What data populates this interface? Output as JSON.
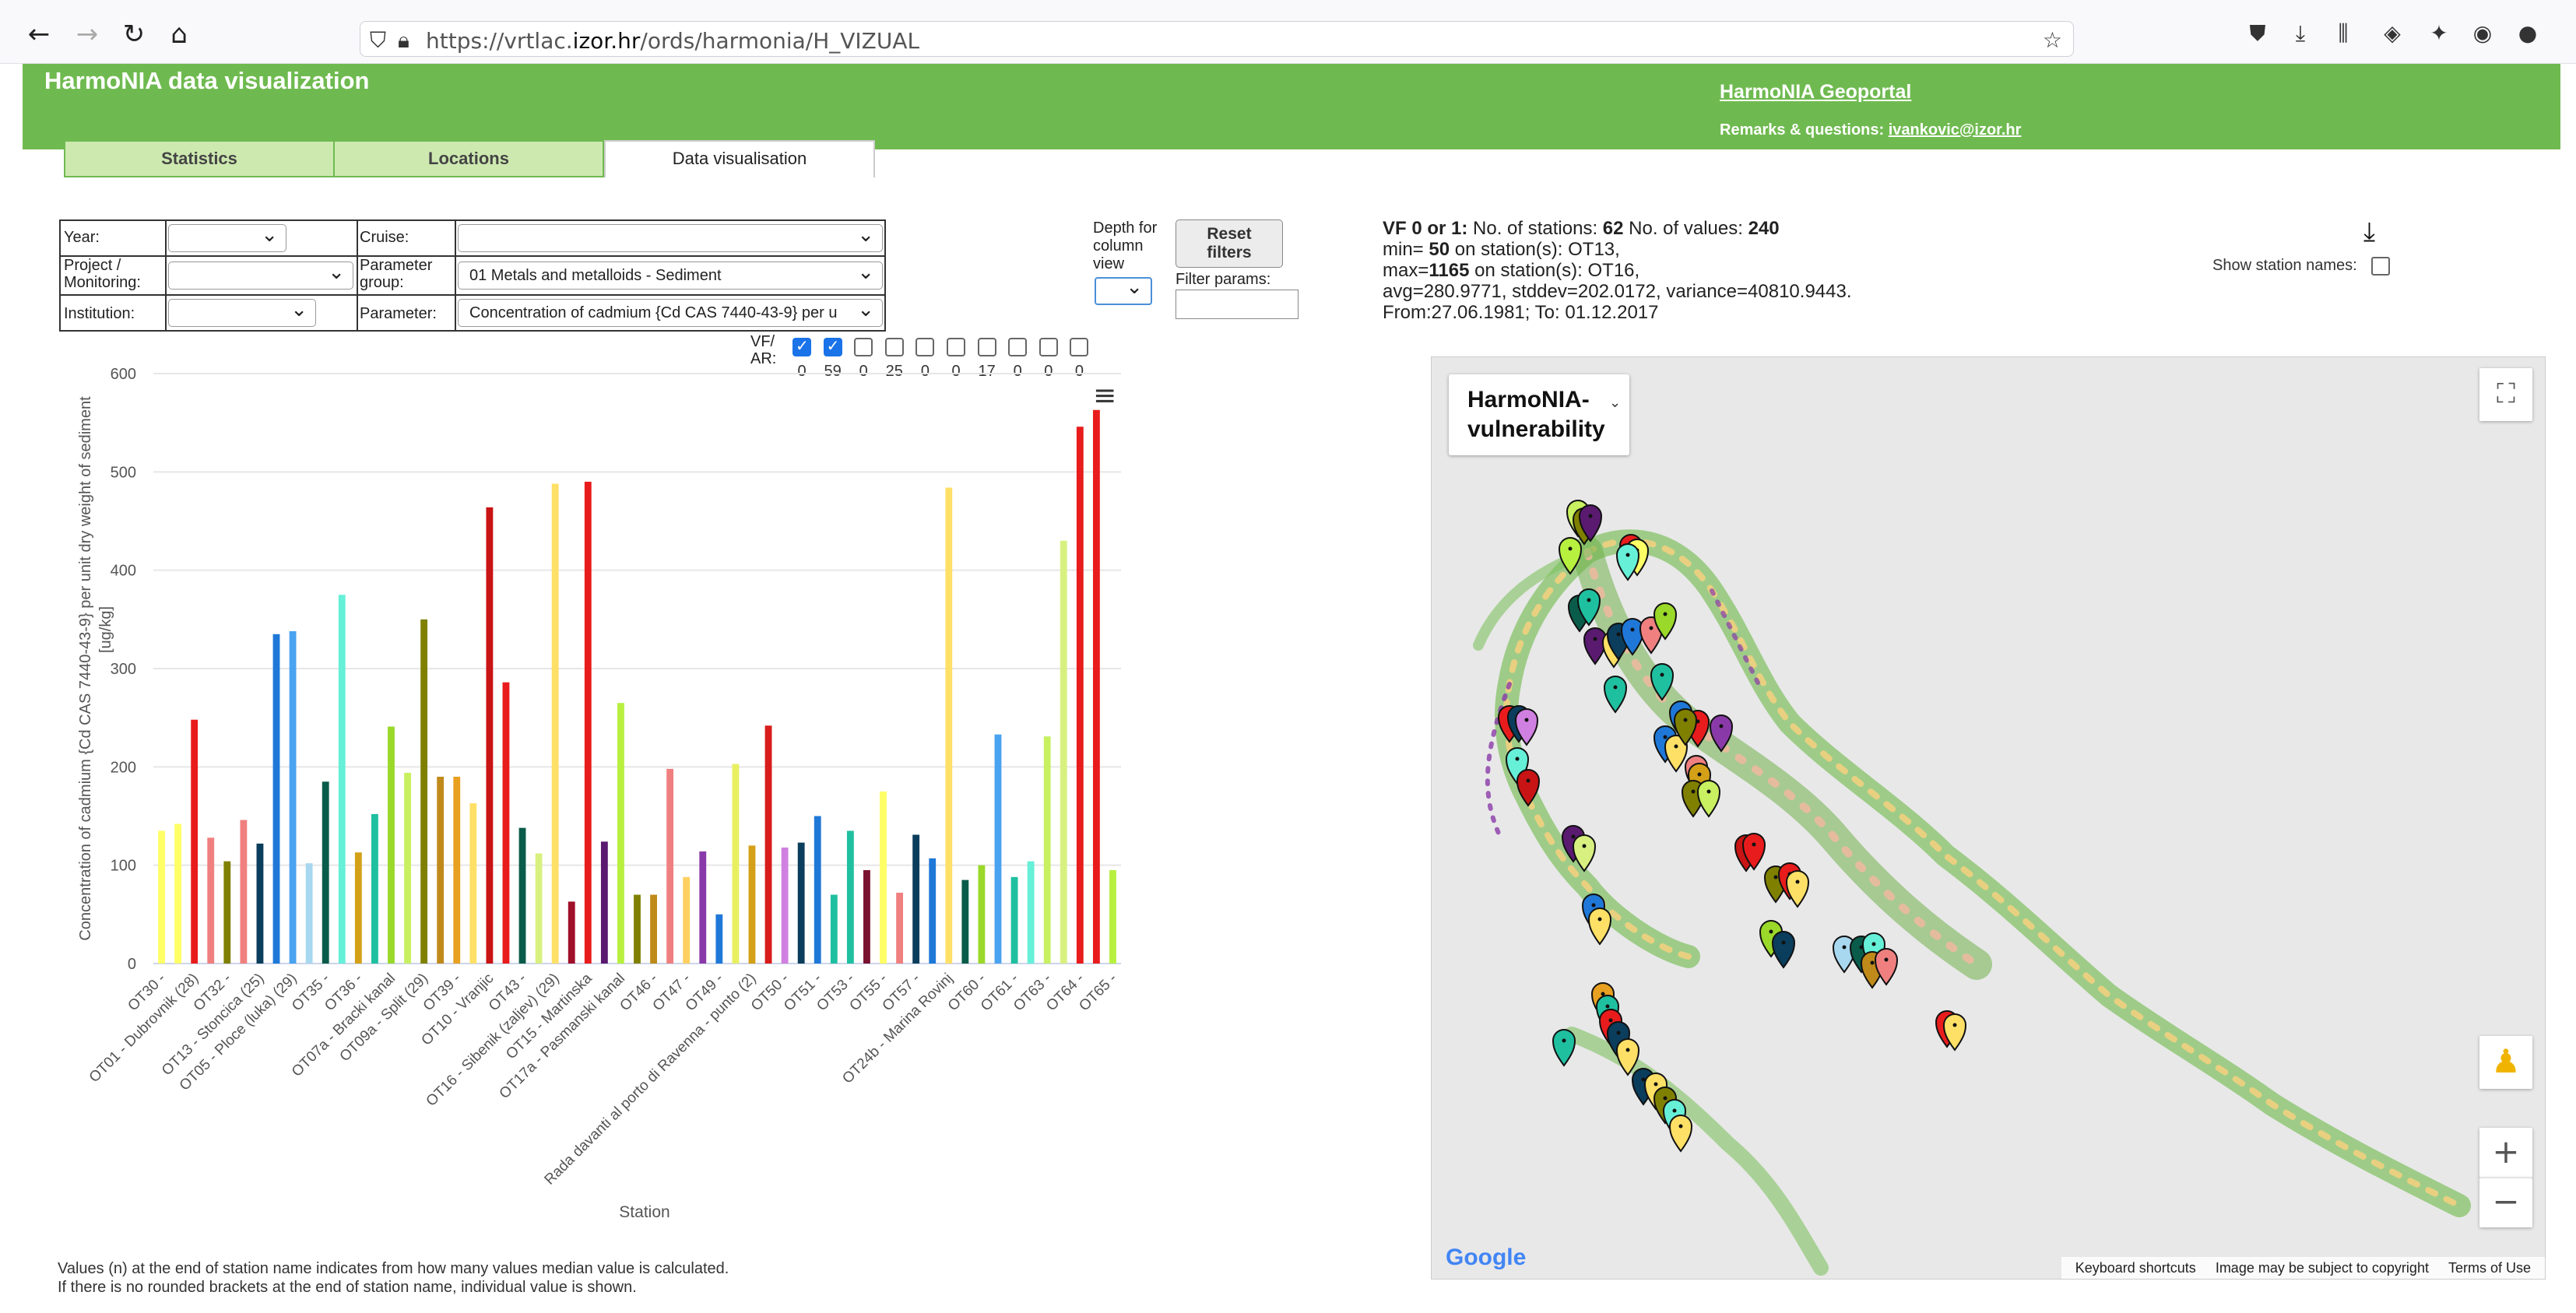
{
  "browser": {
    "url_prefix": "https://vrtlac.",
    "url_domain": "izor.hr",
    "url_path": "/ords/harmonia/H_VIZUAL"
  },
  "header": {
    "title": "HarmoNIA data visualization",
    "geoportal_link": "HarmoNIA Geoportal",
    "remarks_label": "Remarks & questions:",
    "remarks_email": "ivankovic@izor.hr"
  },
  "tabs": [
    {
      "label": "Statistics"
    },
    {
      "label": "Locations"
    },
    {
      "label": "Data visualisation"
    }
  ],
  "filters": {
    "year_label": "Year:",
    "year_value": "",
    "cruise_label": "Cruise:",
    "cruise_value": "",
    "project_label_1": "Project /",
    "project_label_2": "Monitoring:",
    "project_value": "",
    "param_group_label_1": "Parameter",
    "param_group_label_2": "group:",
    "param_group_value": "01 Metals and metalloids - Sediment",
    "institution_label": "Institution:",
    "institution_value": "",
    "parameter_label": "Parameter:",
    "parameter_value": "Concentration of cadmium {Cd CAS 7440-43-9} per u",
    "depth_label": [
      "Depth for",
      "column",
      "view"
    ],
    "reset_button": [
      "Reset",
      "filters"
    ],
    "filter_params_label": "Filter params:",
    "filter_params_value": ""
  },
  "vfar": {
    "label_1": "VF/",
    "label_2": "AR:",
    "checkboxes": [
      {
        "checked": true,
        "count": "0"
      },
      {
        "checked": true,
        "count": "59"
      },
      {
        "checked": false,
        "count": "0"
      },
      {
        "checked": false,
        "count": "25"
      },
      {
        "checked": false,
        "count": "0"
      },
      {
        "checked": false,
        "count": "0"
      },
      {
        "checked": false,
        "count": "17"
      },
      {
        "checked": false,
        "count": "0"
      },
      {
        "checked": false,
        "count": "0"
      },
      {
        "checked": false,
        "count": "0"
      }
    ]
  },
  "stats": {
    "line1_prefix": "VF 0 or 1:",
    "line1_stations_label": "No. of stations:",
    "stations": "62",
    "line1_values_label": "No. of values:",
    "values": "240",
    "min_label": "min=",
    "min_value": "50",
    "min_station": "on station(s): OT13,",
    "max_label": "max=",
    "max_value": "1165",
    "max_station": "on station(s): OT16,",
    "line4": "avg=280.9771, stddev=202.0172, variance=40810.9443.",
    "line5": "From:27.06.1981; To: 01.12.2017",
    "show_names_label": "Show station names:"
  },
  "map": {
    "layer_name_1": "HarmoNIA-",
    "layer_name_2": "vulnerability",
    "google": "Google",
    "footer": [
      "Keyboard shortcuts",
      "Image may be subject to copyright",
      "Terms of Use"
    ]
  },
  "note": {
    "line1": "Values (n) at the end of station name indicates from how many values median value is calculated.",
    "line2": "If there is no rounded brackets at the end of station name, individual value is shown."
  },
  "chart_data": {
    "type": "bar",
    "ylabel_1": "Concentration of cadmium {Cd CAS 7440-43-9} per unit dry weight of sediment",
    "ylabel_2": "[ug/kg]",
    "xlabel": "Station",
    "ylim": [
      0,
      600
    ],
    "yticks": [
      0,
      100,
      200,
      300,
      400,
      500,
      600
    ],
    "grid": true,
    "bars": [
      {
        "value": 135,
        "color": "#ffff66"
      },
      {
        "value": 142,
        "color": "#ffff66"
      },
      {
        "value": 248,
        "color": "#e81c1c"
      },
      {
        "value": 128,
        "color": "#f08080"
      },
      {
        "value": 104,
        "color": "#808000"
      },
      {
        "value": 146,
        "color": "#f08080"
      },
      {
        "value": 122,
        "color": "#0b3d5c"
      },
      {
        "value": 335,
        "color": "#1f78d8"
      },
      {
        "value": 338,
        "color": "#4aa3f0"
      },
      {
        "value": 102,
        "color": "#a8d8f0"
      },
      {
        "value": 185,
        "color": "#0a5c4a"
      },
      {
        "value": 375,
        "color": "#66f0d8"
      },
      {
        "value": 113,
        "color": "#d4a017"
      },
      {
        "value": 152,
        "color": "#1fc0a0"
      },
      {
        "value": 241,
        "color": "#9ad82a"
      },
      {
        "value": 194,
        "color": "#c8f060"
      },
      {
        "value": 350,
        "color": "#808000"
      },
      {
        "value": 190,
        "color": "#c08a1a"
      },
      {
        "value": 190,
        "color": "#e8a020"
      },
      {
        "value": 163,
        "color": "#ffe066"
      },
      {
        "value": 464,
        "color": "#c81414"
      },
      {
        "value": 286,
        "color": "#e81c1c"
      },
      {
        "value": 138,
        "color": "#0a5c4a"
      },
      {
        "value": 112,
        "color": "#d8f080"
      },
      {
        "value": 488,
        "color": "#ffe066"
      },
      {
        "value": 63,
        "color": "#a0102a"
      },
      {
        "value": 490,
        "color": "#e81c1c"
      },
      {
        "value": 124,
        "color": "#5a1a70"
      },
      {
        "value": 265,
        "color": "#b8f040"
      },
      {
        "value": 70,
        "color": "#808000"
      },
      {
        "value": 70,
        "color": "#c08a1a"
      },
      {
        "value": 198,
        "color": "#f08080"
      },
      {
        "value": 88,
        "color": "#ffd060"
      },
      {
        "value": 114,
        "color": "#8a3aa8"
      },
      {
        "value": 50,
        "color": "#1f78d8"
      },
      {
        "value": 203,
        "color": "#e8f060"
      },
      {
        "value": 120,
        "color": "#d4a017"
      },
      {
        "value": 242,
        "color": "#d81c1c"
      },
      {
        "value": 118,
        "color": "#d080e0"
      },
      {
        "value": 123,
        "color": "#0b3d5c"
      },
      {
        "value": 150,
        "color": "#1f78d8"
      },
      {
        "value": 70,
        "color": "#1fc0a0"
      },
      {
        "value": 135,
        "color": "#1fc0a0"
      },
      {
        "value": 95,
        "color": "#7a1030"
      },
      {
        "value": 175,
        "color": "#ffff66"
      },
      {
        "value": 72,
        "color": "#f08080"
      },
      {
        "value": 131,
        "color": "#0b3d5c"
      },
      {
        "value": 107,
        "color": "#1f78d8"
      },
      {
        "value": 484,
        "color": "#ffe066"
      },
      {
        "value": 85,
        "color": "#0a5c4a"
      },
      {
        "value": 100,
        "color": "#9ad82a"
      },
      {
        "value": 233,
        "color": "#4aa3f0"
      },
      {
        "value": 88,
        "color": "#1fc0a0"
      },
      {
        "value": 104,
        "color": "#66f0d8"
      },
      {
        "value": 231,
        "color": "#c8f060"
      },
      {
        "value": 430,
        "color": "#d8f080"
      },
      {
        "value": 546,
        "color": "#e81c1c"
      },
      {
        "value": 563,
        "color": "#e81c1c"
      },
      {
        "value": 95,
        "color": "#b8f040"
      }
    ],
    "labels": [
      {
        "bar": 0,
        "text": "OT30 -"
      },
      {
        "bar": 2,
        "text": "OT01 - Dubrovnik (28)"
      },
      {
        "bar": 4,
        "text": "OT32 -"
      },
      {
        "bar": 6,
        "text": "OT13 - Stoncica (25)"
      },
      {
        "bar": 8,
        "text": "OT05 - Ploce (luka) (29)"
      },
      {
        "bar": 10,
        "text": "OT35 -"
      },
      {
        "bar": 12,
        "text": "OT36 -"
      },
      {
        "bar": 14,
        "text": "OT07a - Bracki kanal"
      },
      {
        "bar": 16,
        "text": "OT09a - Split (29)"
      },
      {
        "bar": 18,
        "text": "OT39 -"
      },
      {
        "bar": 20,
        "text": "OT10 - Vranjic"
      },
      {
        "bar": 22,
        "text": "OT43 -"
      },
      {
        "bar": 24,
        "text": "OT16 - Sibenik (zaljev) (29)"
      },
      {
        "bar": 26,
        "text": "OT15 - Martinska"
      },
      {
        "bar": 28,
        "text": "OT17a - Pasmanski kanal"
      },
      {
        "bar": 30,
        "text": "OT46 -"
      },
      {
        "bar": 32,
        "text": "OT47 -"
      },
      {
        "bar": 34,
        "text": "OT49 -"
      },
      {
        "bar": 36,
        "text": "Rada davanti al porto di Ravenna - punto (2)"
      },
      {
        "bar": 38,
        "text": "OT50 -"
      },
      {
        "bar": 40,
        "text": "OT51 -"
      },
      {
        "bar": 42,
        "text": "OT53 -"
      },
      {
        "bar": 44,
        "text": "OT55 -"
      },
      {
        "bar": 46,
        "text": "OT57 -"
      },
      {
        "bar": 48,
        "text": "OT24b - Marina Rovinj"
      },
      {
        "bar": 50,
        "text": "OT60 -"
      },
      {
        "bar": 52,
        "text": "OT61 -"
      },
      {
        "bar": 54,
        "text": "OT63 -"
      },
      {
        "bar": 56,
        "text": "OT64 -"
      },
      {
        "bar": 58,
        "text": "OT65 -"
      }
    ]
  }
}
